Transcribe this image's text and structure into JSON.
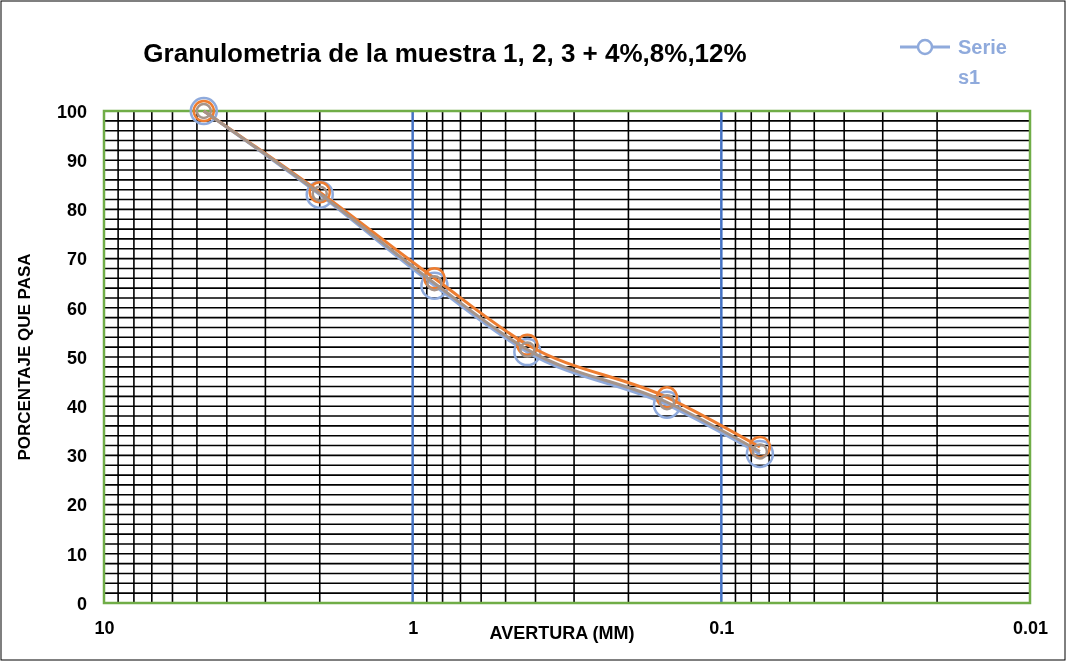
{
  "chart_data": {
    "type": "line",
    "title": "Granulometria de la muestra 1, 2, 3 + 4%,8%,12%",
    "xlabel": "AVERTURA (MM)",
    "ylabel": "PORCENTAJE QUE PASA",
    "x": [
      4.75,
      2,
      0.85,
      0.425,
      0.15,
      0.075
    ],
    "series": [
      {
        "name": "Series1",
        "color": "#8faadc",
        "values": [
          100,
          83,
          64.5,
          51,
          40.3,
          30.3
        ]
      },
      {
        "color": "#ed7d31",
        "values": [
          100,
          83.5,
          66,
          52.5,
          41.8,
          31.7
        ]
      },
      {
        "color": "#a5948a",
        "values": [
          100,
          83.2,
          65,
          51.5,
          40.8,
          30.8
        ]
      }
    ],
    "log": "x",
    "xlim": [
      10,
      0.01
    ],
    "xticks": [
      10,
      1,
      0.1,
      0.01
    ],
    "ylim": [
      0,
      100
    ],
    "yticks": [
      0,
      10,
      20,
      30,
      40,
      50,
      60,
      70,
      80,
      90,
      100
    ],
    "grid": true,
    "legend": "top right",
    "marker": "circle",
    "line_style": "solid",
    "ref_lines": [
      {
        "axis": "x",
        "value": 1,
        "color": "#4472c4"
      },
      {
        "axis": "x",
        "value": 0.1,
        "color": "#4472c4"
      }
    ]
  }
}
